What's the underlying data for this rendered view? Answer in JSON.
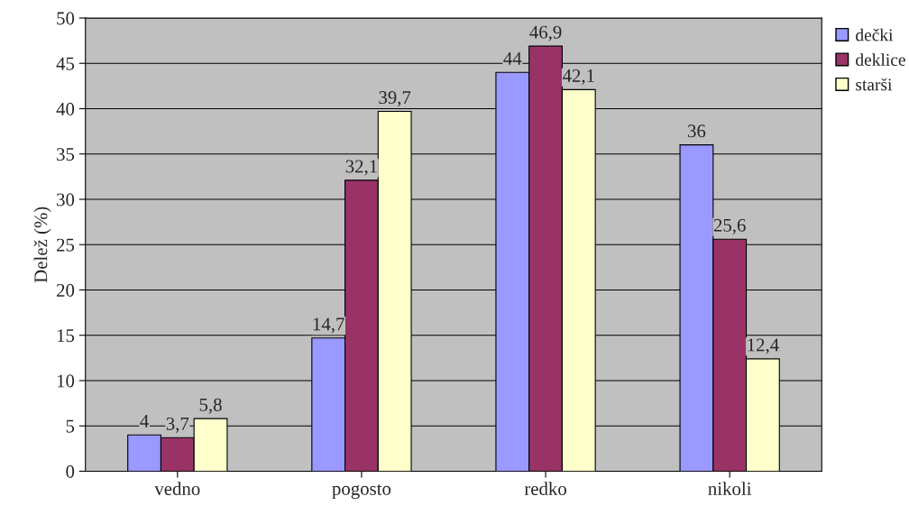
{
  "chart_data": {
    "type": "bar",
    "ylabel": "Delež (%)",
    "categories": [
      "vedno",
      "pogosto",
      "redko",
      "nikoli"
    ],
    "series": [
      {
        "name": "dečki",
        "color": "#9999ff",
        "values": [
          4,
          14.7,
          44,
          36
        ],
        "value_labels": [
          "4",
          "14,7",
          "44",
          "36"
        ]
      },
      {
        "name": "deklice",
        "color": "#993366",
        "values": [
          3.7,
          32.1,
          46.9,
          25.6
        ],
        "value_labels": [
          "3,7",
          "32,1",
          "46,9",
          "25,6"
        ]
      },
      {
        "name": "starši",
        "color": "#ffffcc",
        "values": [
          5.8,
          39.7,
          42.1,
          12.4
        ],
        "value_labels": [
          "5,8",
          "39,7",
          "42,1",
          "12,4"
        ]
      }
    ],
    "ylim": [
      0,
      50
    ],
    "yticks": [
      0,
      5,
      10,
      15,
      20,
      25,
      30,
      35,
      40,
      45,
      50
    ],
    "grid": "y",
    "legend": "top right"
  }
}
